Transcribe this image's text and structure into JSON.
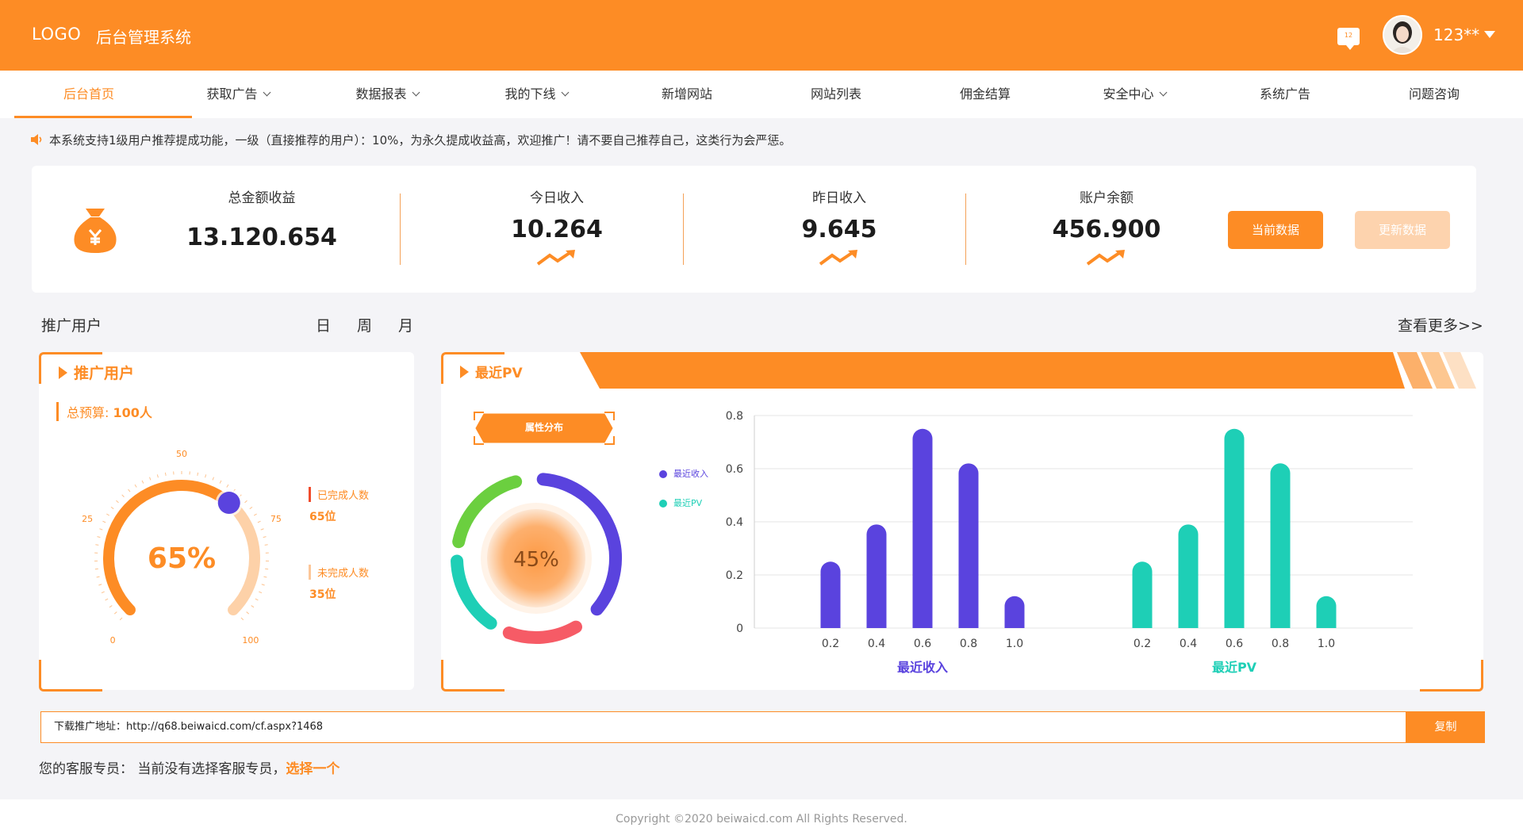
{
  "header": {
    "logo": "LOGO",
    "title": "后台管理系统",
    "message_count": "12",
    "username": "123**"
  },
  "nav": {
    "items": [
      {
        "label": "后台首页",
        "active": true,
        "dropdown": false
      },
      {
        "label": "获取广告",
        "dropdown": true
      },
      {
        "label": "数据报表",
        "dropdown": true
      },
      {
        "label": "我的下线",
        "dropdown": true
      },
      {
        "label": "新增网站",
        "dropdown": false
      },
      {
        "label": "网站列表",
        "dropdown": false
      },
      {
        "label": "佣金结算",
        "dropdown": false
      },
      {
        "label": "安全中心",
        "dropdown": true
      },
      {
        "label": "系统广告",
        "dropdown": false
      },
      {
        "label": "问题咨询",
        "dropdown": false
      }
    ]
  },
  "notice": "本系统支持1级用户推荐提成功能，一级（直接推荐的用户）：10%，为永久提成收益高，欢迎推广！请不要自己推荐自己，这类行为会严惩。",
  "stats": {
    "total_label": "总金额收益",
    "total_value": "13.120.654",
    "today_label": "今日收入",
    "today_value": "10.264",
    "yesterday_label": "昨日收入",
    "yesterday_value": "9.645",
    "balance_label": "账户余额",
    "balance_value": "456.900",
    "btn_current": "当前数据",
    "btn_update": "更新数据"
  },
  "section": {
    "title": "推广用户",
    "periods": [
      "日",
      "周",
      "月"
    ],
    "more": "查看更多>>"
  },
  "promo_panel": {
    "title": "推广用户",
    "budget_label": "总预算:",
    "budget_value": "100人",
    "gauge_percent": 65,
    "gauge_text": "65%",
    "ticks": [
      "0",
      "25",
      "50",
      "75",
      "100"
    ],
    "done_label": "已完成人数",
    "done_value": "65位",
    "undone_label": "未完成人数",
    "undone_value": "35位"
  },
  "pv_panel": {
    "title": "最近PV",
    "badge": "属性分布",
    "donut_text": "45%",
    "legend": [
      {
        "name": "最近收入",
        "color": "#5a43de"
      },
      {
        "name": "最近PV",
        "color": "#1ecfb6"
      }
    ]
  },
  "chart_data": {
    "type": "bar",
    "ylim": [
      0,
      0.8
    ],
    "yticks": [
      "0",
      "0.2",
      "0.4",
      "0.6",
      "0.8"
    ],
    "groups": [
      {
        "name": "最近收入",
        "color": "#5a43de",
        "categories": [
          "0.2",
          "0.4",
          "0.6",
          "0.8",
          "1.0"
        ],
        "values": [
          0.25,
          0.39,
          0.75,
          0.62,
          0.12
        ]
      },
      {
        "name": "最近PV",
        "color": "#1ecfb6",
        "categories": [
          "0.2",
          "0.4",
          "0.6",
          "0.8",
          "1.0"
        ],
        "values": [
          0.25,
          0.39,
          0.75,
          0.62,
          0.12
        ]
      }
    ]
  },
  "promo_url": {
    "text": "下载推广地址：http://q68.beiwaicd.com/cf.aspx?1468",
    "copy": "复制"
  },
  "service": {
    "label": "您的客服专员：",
    "status": "当前没有选择客服专员，",
    "link": "选择一个"
  },
  "footer": "Copyright ©2020 beiwaicd.com All Rights Reserved."
}
